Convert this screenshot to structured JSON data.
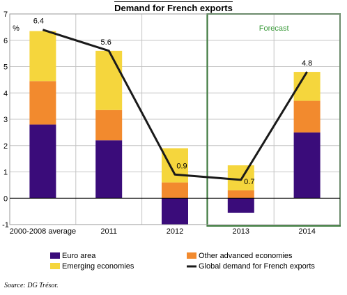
{
  "chart_data": {
    "type": "bar",
    "title": "Demand for French exports",
    "ylabel": "%",
    "ylim": [
      -1,
      7
    ],
    "yticks": [
      -1,
      0,
      1,
      2,
      3,
      4,
      5,
      6,
      7
    ],
    "categories": [
      "2000-2008 average",
      "2011",
      "2012",
      "2013",
      "2014"
    ],
    "forecast_label": "Forecast",
    "forecast_categories": [
      "2013",
      "2014"
    ],
    "series": [
      {
        "name": "Euro area",
        "type": "bar",
        "color": "#3a0c7a",
        "values": [
          2.8,
          2.2,
          -1.0,
          -0.55,
          2.5
        ]
      },
      {
        "name": "Other advanced economies",
        "type": "bar",
        "color": "#f28a2e",
        "values": [
          1.65,
          1.15,
          0.6,
          0.3,
          1.2
        ]
      },
      {
        "name": "Emerging economies",
        "type": "bar",
        "color": "#f5d63d",
        "values": [
          1.9,
          2.25,
          1.3,
          0.95,
          1.1
        ]
      },
      {
        "name": "Global demand for French exports",
        "type": "line",
        "color": "#1a1a1a",
        "values": [
          6.4,
          5.6,
          0.9,
          0.7,
          4.8
        ]
      }
    ],
    "data_labels": [
      "6.4",
      "5.6",
      "0.9",
      "0.7",
      "4.8"
    ],
    "grid": true,
    "legend_position": "bottom"
  },
  "source": "Source: DG Trésor."
}
